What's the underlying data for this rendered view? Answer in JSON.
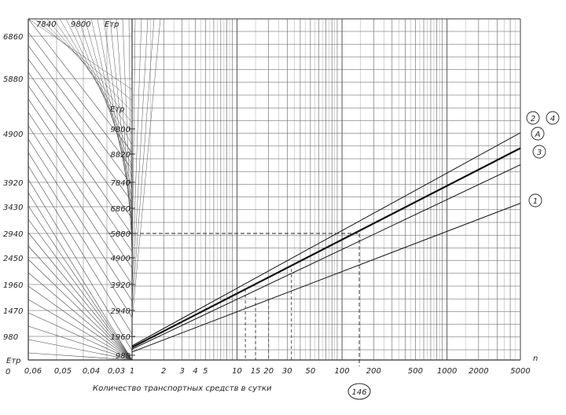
{
  "chart_data": {
    "type": "line",
    "title": "",
    "xlabel": "Количество транспортных средств в сутки",
    "x_axis_letter": "n",
    "x_scale": "log",
    "x_ticks": [
      "1",
      "2",
      "3",
      "4",
      "5",
      "10",
      "15",
      "20",
      "30",
      "50",
      "100",
      "200",
      "500",
      "1000",
      "2000",
      "5000"
    ],
    "x_tick_values": [
      1,
      2,
      3,
      4,
      5,
      10,
      15,
      20,
      30,
      50,
      100,
      200,
      500,
      1000,
      2000,
      5000
    ],
    "left_panel_ticks": [
      "0,06",
      "0,05",
      "0,04",
      "0,03"
    ],
    "left_panel_origin": "0",
    "left_axis": {
      "label": "Eтр",
      "ticks": [
        "6860",
        "5880",
        "4900",
        "3920",
        "3430",
        "2940",
        "2450",
        "1960",
        "1470",
        "980"
      ],
      "values": [
        6860,
        5880,
        4900,
        3920,
        3430,
        2940,
        2450,
        1960,
        1470,
        980
      ]
    },
    "mid_axis": {
      "label": "Eтр",
      "ticks": [
        "9800",
        "8820",
        "7840",
        "6860",
        "5880",
        "4900",
        "3920",
        "2940",
        "1960",
        "980"
      ],
      "values": [
        9800,
        8820,
        7840,
        6860,
        5880,
        4900,
        3920,
        2940,
        1960,
        980
      ]
    },
    "top_axis": {
      "label": "Eтр",
      "ticks": [
        "7840",
        "9800"
      ]
    },
    "series": [
      {
        "name": "2",
        "x": [
          1,
          5000
        ],
        "y": [
          1470,
          9650
        ],
        "emphasis": "thin"
      },
      {
        "name": "4",
        "x": [
          1,
          5000
        ],
        "y": [
          1470,
          9650
        ],
        "emphasis": "thin"
      },
      {
        "name": "A",
        "x": [
          1,
          5000
        ],
        "y": [
          1390,
          9050
        ],
        "emphasis": "bold"
      },
      {
        "name": "3",
        "x": [
          1,
          5000
        ],
        "y": [
          1300,
          8450
        ],
        "emphasis": "thin"
      },
      {
        "name": "1",
        "x": [
          1,
          5000
        ],
        "y": [
          1150,
          7050
        ],
        "emphasis": "thin"
      }
    ],
    "annotations": [
      {
        "text": "146",
        "x": 146,
        "circled": true
      }
    ],
    "grid": true
  }
}
